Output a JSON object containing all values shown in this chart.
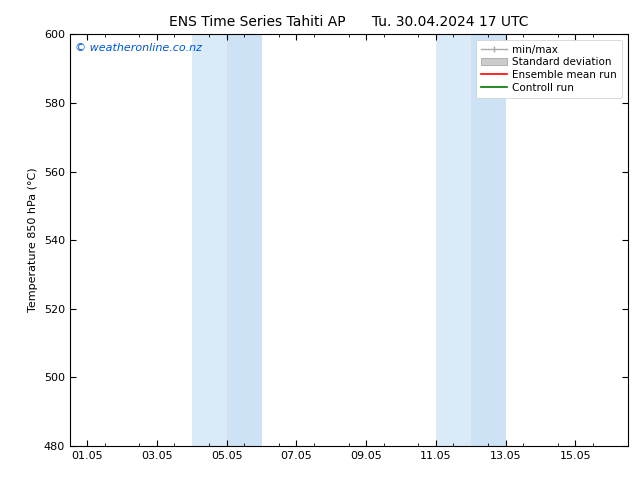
{
  "title": "ENS Time Series Tahiti AP",
  "title2": "Tu. 30.04.2024 17 UTC",
  "ylabel": "Temperature 850 hPa (°C)",
  "ylim": [
    480,
    600
  ],
  "yticks": [
    480,
    500,
    520,
    540,
    560,
    580,
    600
  ],
  "xlim": [
    -0.5,
    15.5
  ],
  "xtick_labels": [
    "01.05",
    "03.05",
    "05.05",
    "07.05",
    "09.05",
    "11.05",
    "13.05",
    "15.05"
  ],
  "xtick_positions": [
    0,
    2,
    4,
    6,
    8,
    10,
    12,
    14
  ],
  "shaded_bands": [
    {
      "xstart": 3.0,
      "xend": 4.0,
      "color": "#daeaf8"
    },
    {
      "xstart": 4.0,
      "xend": 5.0,
      "color": "#cde3f5"
    },
    {
      "xstart": 10.0,
      "xend": 11.0,
      "color": "#daeaf8"
    },
    {
      "xstart": 11.0,
      "xend": 12.0,
      "color": "#cde3f5"
    }
  ],
  "watermark_text": "© weatheronline.co.nz",
  "watermark_color": "#0055cc",
  "watermark_fontsize": 8,
  "legend_items": [
    {
      "label": "min/max",
      "color": "#aaaaaa",
      "lw": 1.0,
      "style": "minmax"
    },
    {
      "label": "Standard deviation",
      "color": "#cccccc",
      "lw": 5,
      "style": "std"
    },
    {
      "label": "Ensemble mean run",
      "color": "#ff0000",
      "lw": 1.2,
      "style": "line"
    },
    {
      "label": "Controll run",
      "color": "#007700",
      "lw": 1.2,
      "style": "line"
    }
  ],
  "bg_color": "#ffffff",
  "plot_bg_color": "#ffffff",
  "tick_color": "#000000",
  "title_fontsize": 10,
  "ylabel_fontsize": 8,
  "tick_fontsize": 8
}
